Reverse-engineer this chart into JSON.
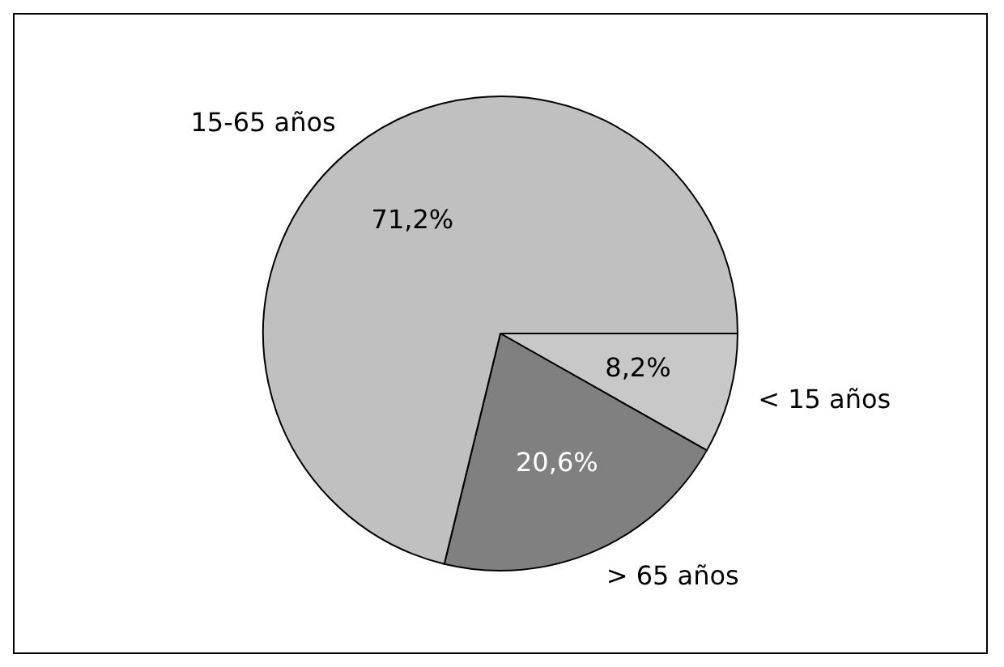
{
  "chart_data": {
    "type": "pie",
    "categories": [
      "< 15 años",
      "> 65 años",
      "15-65 años"
    ],
    "values": [
      8.2,
      20.6,
      71.2
    ],
    "colors": [
      "#c8c8c8",
      "#808080",
      "#c0c0c0"
    ],
    "value_labels": [
      "8,2%",
      "20,6%",
      "71,2%"
    ],
    "legend": false
  }
}
